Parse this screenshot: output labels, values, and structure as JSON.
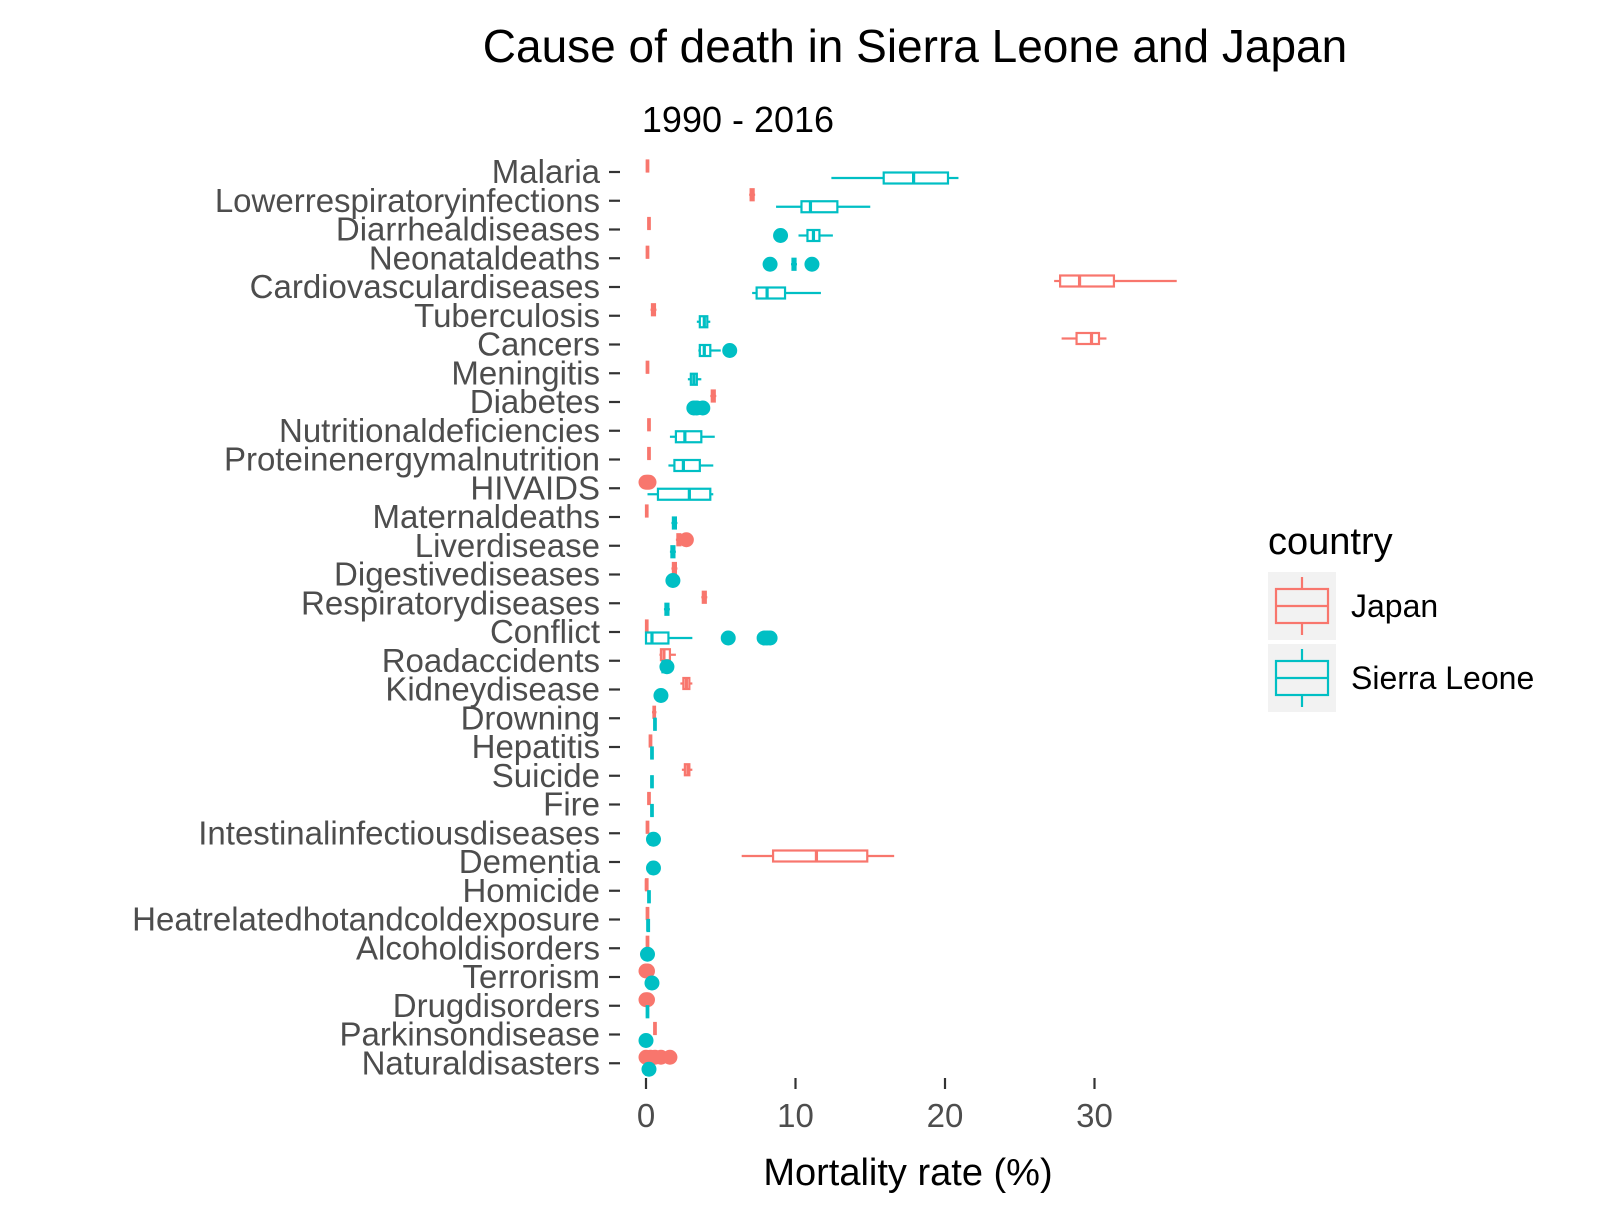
{
  "chart_data": {
    "type": "boxplot",
    "title": "Cause of death in Sierra Leone and Japan",
    "subtitle": "1990 - 2016",
    "xlabel": "Mortality rate (%)",
    "ylabel": "",
    "xlim": [
      -1,
      40
    ],
    "xticks": [
      0,
      10,
      20,
      30
    ],
    "grid": false,
    "legend": {
      "title": "country",
      "position": "right",
      "entries": [
        "Japan",
        "Sierra Leone"
      ]
    },
    "colors": {
      "Japan": "#F8766D",
      "Sierra Leone": "#00BFC4"
    },
    "series": [
      {
        "name": "Japan",
        "boxes": [
          {
            "category": "Malaria",
            "whisker_low": 0.0,
            "q1": 0.05,
            "median": 0.1,
            "q3": 0.15,
            "whisker_high": 0.2,
            "outliers": []
          },
          {
            "category": "Lowerrespiratoryinfections",
            "whisker_low": 6.9,
            "q1": 7.0,
            "median": 7.1,
            "q3": 7.2,
            "whisker_high": 7.3,
            "outliers": []
          },
          {
            "category": "Diarrhealdiseases",
            "whisker_low": 0.1,
            "q1": 0.15,
            "median": 0.2,
            "q3": 0.25,
            "whisker_high": 0.3,
            "outliers": []
          },
          {
            "category": "Neonataldeaths",
            "whisker_low": 0.0,
            "q1": 0.05,
            "median": 0.1,
            "q3": 0.15,
            "whisker_high": 0.2,
            "outliers": []
          },
          {
            "category": "Cardiovasculardiseases",
            "whisker_low": 27.3,
            "q1": 27.7,
            "median": 29.0,
            "q3": 31.3,
            "whisker_high": 35.5,
            "outliers": []
          },
          {
            "category": "Tuberculosis",
            "whisker_low": 0.3,
            "q1": 0.4,
            "median": 0.5,
            "q3": 0.6,
            "whisker_high": 0.7,
            "outliers": []
          },
          {
            "category": "Cancers",
            "whisker_low": 27.8,
            "q1": 28.8,
            "median": 29.8,
            "q3": 30.3,
            "whisker_high": 30.8,
            "outliers": []
          },
          {
            "category": "Meningitis",
            "whisker_low": 0.0,
            "q1": 0.05,
            "median": 0.1,
            "q3": 0.15,
            "whisker_high": 0.2,
            "outliers": []
          },
          {
            "category": "Diabetes",
            "whisker_low": 4.3,
            "q1": 4.4,
            "median": 4.5,
            "q3": 4.6,
            "whisker_high": 4.7,
            "outliers": []
          },
          {
            "category": "Nutritionaldeficiencies",
            "whisker_low": 0.1,
            "q1": 0.15,
            "median": 0.2,
            "q3": 0.25,
            "whisker_high": 0.3,
            "outliers": []
          },
          {
            "category": "Proteinenergymalnutrition",
            "whisker_low": 0.1,
            "q1": 0.15,
            "median": 0.2,
            "q3": 0.25,
            "whisker_high": 0.3,
            "outliers": []
          },
          {
            "category": "HIVAIDS",
            "whisker_low": 0.0,
            "q1": 0.0,
            "median": 0.0,
            "q3": 0.0,
            "whisker_high": 0.0,
            "outliers": [
              0.0,
              0.1,
              0.2
            ]
          },
          {
            "category": "Maternaldeaths",
            "whisker_low": 0.0,
            "q1": 0.0,
            "median": 0.05,
            "q3": 0.1,
            "whisker_high": 0.1,
            "outliers": []
          },
          {
            "category": "Liverdisease",
            "whisker_low": 2.0,
            "q1": 2.1,
            "median": 2.2,
            "q3": 2.3,
            "whisker_high": 2.5,
            "outliers": [
              2.7
            ]
          },
          {
            "category": "Digestivediseases",
            "whisker_low": 1.7,
            "q1": 1.8,
            "median": 1.9,
            "q3": 2.0,
            "whisker_high": 2.1,
            "outliers": []
          },
          {
            "category": "Respiratorydiseases",
            "whisker_low": 3.7,
            "q1": 3.8,
            "median": 3.9,
            "q3": 4.0,
            "whisker_high": 4.1,
            "outliers": []
          },
          {
            "category": "Conflict",
            "whisker_low": 0.0,
            "q1": 0.0,
            "median": 0.05,
            "q3": 0.1,
            "whisker_high": 0.1,
            "outliers": []
          },
          {
            "category": "Roadaccidents",
            "whisker_low": 0.9,
            "q1": 1.0,
            "median": 1.2,
            "q3": 1.6,
            "whisker_high": 2.0,
            "outliers": []
          },
          {
            "category": "Kidneydisease",
            "whisker_low": 2.3,
            "q1": 2.5,
            "median": 2.7,
            "q3": 2.9,
            "whisker_high": 3.1,
            "outliers": []
          },
          {
            "category": "Drowning",
            "whisker_low": 0.4,
            "q1": 0.5,
            "median": 0.55,
            "q3": 0.6,
            "whisker_high": 0.7,
            "outliers": []
          },
          {
            "category": "Hepatitis",
            "whisker_low": 0.2,
            "q1": 0.25,
            "median": 0.3,
            "q3": 0.35,
            "whisker_high": 0.4,
            "outliers": []
          },
          {
            "category": "Suicide",
            "whisker_low": 2.4,
            "q1": 2.6,
            "median": 2.8,
            "q3": 2.9,
            "whisker_high": 3.1,
            "outliers": []
          },
          {
            "category": "Fire",
            "whisker_low": 0.1,
            "q1": 0.15,
            "median": 0.2,
            "q3": 0.25,
            "whisker_high": 0.3,
            "outliers": []
          },
          {
            "category": "Intestinalinfectiousdiseases",
            "whisker_low": 0.0,
            "q1": 0.05,
            "median": 0.1,
            "q3": 0.15,
            "whisker_high": 0.2,
            "outliers": []
          },
          {
            "category": "Dementia",
            "whisker_low": 6.4,
            "q1": 8.5,
            "median": 11.4,
            "q3": 14.8,
            "whisker_high": 16.6,
            "outliers": []
          },
          {
            "category": "Homicide",
            "whisker_low": 0.0,
            "q1": 0.0,
            "median": 0.02,
            "q3": 0.05,
            "whisker_high": 0.1,
            "outliers": []
          },
          {
            "category": "Heatrelatedhotandcoldexposure",
            "whisker_low": 0.0,
            "q1": 0.05,
            "median": 0.1,
            "q3": 0.1,
            "whisker_high": 0.15,
            "outliers": []
          },
          {
            "category": "Alcoholdisorders",
            "whisker_low": 0.0,
            "q1": 0.05,
            "median": 0.1,
            "q3": 0.1,
            "whisker_high": 0.15,
            "outliers": []
          },
          {
            "category": "Terrorism",
            "whisker_low": 0.0,
            "q1": 0.0,
            "median": 0.0,
            "q3": 0.0,
            "whisker_high": 0.0,
            "outliers": [
              0.0,
              0.1
            ]
          },
          {
            "category": "Drugdisorders",
            "whisker_low": 0.0,
            "q1": 0.0,
            "median": 0.0,
            "q3": 0.0,
            "whisker_high": 0.0,
            "outliers": [
              0.0,
              0.1
            ]
          },
          {
            "category": "Parkinsondisease",
            "whisker_low": 0.5,
            "q1": 0.55,
            "median": 0.6,
            "q3": 0.65,
            "whisker_high": 0.7,
            "outliers": []
          },
          {
            "category": "Naturaldisasters",
            "whisker_low": 0.0,
            "q1": 0.0,
            "median": 0.0,
            "q3": 0.0,
            "whisker_high": 0.0,
            "outliers": [
              0.0,
              0.3,
              0.6,
              1.0,
              1.6
            ]
          }
        ]
      },
      {
        "name": "Sierra Leone",
        "boxes": [
          {
            "category": "Malaria",
            "whisker_low": 12.4,
            "q1": 15.9,
            "median": 17.9,
            "q3": 20.2,
            "whisker_high": 20.9,
            "outliers": []
          },
          {
            "category": "Lowerrespiratoryinfections",
            "whisker_low": 8.7,
            "q1": 10.4,
            "median": 11.0,
            "q3": 12.8,
            "whisker_high": 15.0,
            "outliers": []
          },
          {
            "category": "Diarrhealdiseases",
            "whisker_low": 10.2,
            "q1": 10.8,
            "median": 11.2,
            "q3": 11.6,
            "whisker_high": 12.5,
            "outliers": [
              9.0
            ]
          },
          {
            "category": "Neonataldeaths",
            "whisker_low": 9.7,
            "q1": 9.8,
            "median": 9.9,
            "q3": 10.0,
            "whisker_high": 10.1,
            "outliers": [
              8.3,
              11.1
            ]
          },
          {
            "category": "Cardiovasculardiseases",
            "whisker_low": 7.1,
            "q1": 7.4,
            "median": 8.1,
            "q3": 9.3,
            "whisker_high": 11.7,
            "outliers": []
          },
          {
            "category": "Tuberculosis",
            "whisker_low": 3.4,
            "q1": 3.6,
            "median": 3.9,
            "q3": 4.1,
            "whisker_high": 4.3,
            "outliers": []
          },
          {
            "category": "Cancers",
            "whisker_low": 3.5,
            "q1": 3.6,
            "median": 3.9,
            "q3": 4.3,
            "whisker_high": 5.0,
            "outliers": [
              5.6
            ]
          },
          {
            "category": "Meningitis",
            "whisker_low": 2.8,
            "q1": 3.0,
            "median": 3.2,
            "q3": 3.4,
            "whisker_high": 3.7,
            "outliers": []
          },
          {
            "category": "Diabetes",
            "whisker_low": 3.1,
            "q1": 3.3,
            "median": 3.6,
            "q3": 3.9,
            "whisker_high": 4.0,
            "outliers": [
              3.2,
              3.4,
              3.8
            ]
          },
          {
            "category": "Nutritionaldeficiencies",
            "whisker_low": 1.6,
            "q1": 2.0,
            "median": 2.6,
            "q3": 3.7,
            "whisker_high": 4.6,
            "outliers": []
          },
          {
            "category": "Proteinenergymalnutrition",
            "whisker_low": 1.5,
            "q1": 1.9,
            "median": 2.5,
            "q3": 3.6,
            "whisker_high": 4.5,
            "outliers": []
          },
          {
            "category": "HIVAIDS",
            "whisker_low": 0.1,
            "q1": 0.8,
            "median": 2.9,
            "q3": 4.3,
            "whisker_high": 4.5,
            "outliers": []
          },
          {
            "category": "Maternaldeaths",
            "whisker_low": 1.7,
            "q1": 1.8,
            "median": 1.9,
            "q3": 2.0,
            "whisker_high": 2.1,
            "outliers": []
          },
          {
            "category": "Liverdisease",
            "whisker_low": 1.6,
            "q1": 1.7,
            "median": 1.8,
            "q3": 1.9,
            "whisker_high": 2.0,
            "outliers": []
          },
          {
            "category": "Digestivediseases",
            "whisker_low": 1.6,
            "q1": 1.7,
            "median": 1.8,
            "q3": 1.9,
            "whisker_high": 2.0,
            "outliers": [
              1.8
            ]
          },
          {
            "category": "Respiratorydiseases",
            "whisker_low": 1.2,
            "q1": 1.3,
            "median": 1.4,
            "q3": 1.5,
            "whisker_high": 1.6,
            "outliers": []
          },
          {
            "category": "Conflict",
            "whisker_low": 0.0,
            "q1": 0.0,
            "median": 0.4,
            "q3": 1.5,
            "whisker_high": 3.1,
            "outliers": [
              5.5,
              7.9,
              8.1,
              8.3
            ]
          },
          {
            "category": "Roadaccidents",
            "whisker_low": 1.0,
            "q1": 1.1,
            "median": 1.3,
            "q3": 1.5,
            "whisker_high": 1.7,
            "outliers": [
              1.4
            ]
          },
          {
            "category": "Kidneydisease",
            "whisker_low": 0.8,
            "q1": 0.9,
            "median": 1.0,
            "q3": 1.1,
            "whisker_high": 1.2,
            "outliers": [
              1.0
            ]
          },
          {
            "category": "Drowning",
            "whisker_low": 0.5,
            "q1": 0.55,
            "median": 0.6,
            "q3": 0.65,
            "whisker_high": 0.7,
            "outliers": []
          },
          {
            "category": "Hepatitis",
            "whisker_low": 0.3,
            "q1": 0.35,
            "median": 0.4,
            "q3": 0.45,
            "whisker_high": 0.5,
            "outliers": []
          },
          {
            "category": "Suicide",
            "whisker_low": 0.3,
            "q1": 0.35,
            "median": 0.4,
            "q3": 0.45,
            "whisker_high": 0.5,
            "outliers": []
          },
          {
            "category": "Fire",
            "whisker_low": 0.3,
            "q1": 0.35,
            "median": 0.4,
            "q3": 0.45,
            "whisker_high": 0.5,
            "outliers": []
          },
          {
            "category": "Intestinalinfectiousdiseases",
            "whisker_low": 0.2,
            "q1": 0.3,
            "median": 0.4,
            "q3": 0.5,
            "whisker_high": 0.6,
            "outliers": [
              0.5
            ]
          },
          {
            "category": "Dementia",
            "whisker_low": 0.2,
            "q1": 0.3,
            "median": 0.4,
            "q3": 0.5,
            "whisker_high": 0.6,
            "outliers": [
              0.5
            ]
          },
          {
            "category": "Homicide",
            "whisker_low": 0.1,
            "q1": 0.15,
            "median": 0.2,
            "q3": 0.25,
            "whisker_high": 0.3,
            "outliers": []
          },
          {
            "category": "Heatrelatedhotandcoldexposure",
            "whisker_low": 0.05,
            "q1": 0.1,
            "median": 0.12,
            "q3": 0.15,
            "whisker_high": 0.2,
            "outliers": []
          },
          {
            "category": "Alcoholdisorders",
            "whisker_low": 0.0,
            "q1": 0.05,
            "median": 0.1,
            "q3": 0.15,
            "whisker_high": 0.2,
            "outliers": [
              0.1
            ]
          },
          {
            "category": "Terrorism",
            "whisker_low": 0.1,
            "q1": 0.2,
            "median": 0.3,
            "q3": 0.4,
            "whisker_high": 0.5,
            "outliers": [
              0.4
            ]
          },
          {
            "category": "Drugdisorders",
            "whisker_low": 0.0,
            "q1": 0.05,
            "median": 0.1,
            "q3": 0.15,
            "whisker_high": 0.2,
            "outliers": []
          },
          {
            "category": "Parkinsondisease",
            "whisker_low": 0.0,
            "q1": 0.0,
            "median": 0.0,
            "q3": 0.0,
            "whisker_high": 0.0,
            "outliers": [
              0.0
            ]
          },
          {
            "category": "Naturaldisasters",
            "whisker_low": 0.0,
            "q1": 0.0,
            "median": 0.0,
            "q3": 0.0,
            "whisker_high": 0.0,
            "outliers": [
              0.2
            ]
          }
        ]
      }
    ]
  }
}
